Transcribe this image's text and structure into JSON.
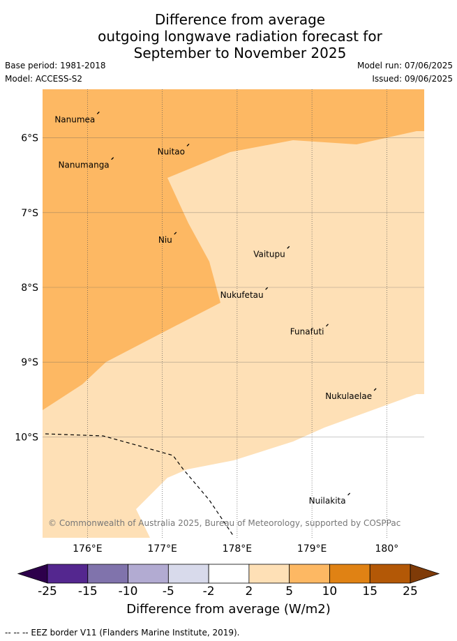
{
  "title": {
    "line1": "Difference from average",
    "line2": "outgoing longwave radiation forecast for",
    "line3": "September to November 2025"
  },
  "meta": {
    "base_period": "Base period: 1981-2018",
    "model": "Model: ACCESS-S2",
    "model_run": "Model run: 07/06/2025",
    "issued": "Issued: 09/06/2025"
  },
  "map": {
    "lon_range": [
      175.4,
      180.5
    ],
    "lat_range": [
      -5.35,
      -11.35
    ],
    "lon_ticks": [
      {
        "value": 176,
        "label": "176°E"
      },
      {
        "value": 177,
        "label": "177°E"
      },
      {
        "value": 178,
        "label": "178°E"
      },
      {
        "value": 179,
        "label": "179°E"
      },
      {
        "value": 180,
        "label": "180°"
      }
    ],
    "lat_ticks": [
      {
        "value": -6,
        "label": "6°S"
      },
      {
        "value": -7,
        "label": "7°S"
      },
      {
        "value": -8,
        "label": "8°S"
      },
      {
        "value": -9,
        "label": "9°S"
      },
      {
        "value": -10,
        "label": "10°S"
      }
    ],
    "places": [
      {
        "name": "Nanumea",
        "lon": 176.13,
        "lat": -5.68
      },
      {
        "name": "Nuitao",
        "lon": 177.33,
        "lat": -6.11
      },
      {
        "name": "Nanumanga",
        "lon": 176.32,
        "lat": -6.29
      },
      {
        "name": "Niu",
        "lon": 177.16,
        "lat": -7.29
      },
      {
        "name": "Vaitupu",
        "lon": 178.67,
        "lat": -7.48
      },
      {
        "name": "Nukufetau",
        "lon": 178.38,
        "lat": -8.03
      },
      {
        "name": "Funafuti",
        "lon": 179.19,
        "lat": -8.52
      },
      {
        "name": "Nukulaelae",
        "lon": 179.83,
        "lat": -9.38
      },
      {
        "name": "Nuilakita",
        "lon": 179.48,
        "lat": -10.78
      }
    ],
    "copyright": "© Commonwealth of Australia 2025, Bureau of Meteorology, supported by COSPPac"
  },
  "colorbar": {
    "title": "Difference from average (W/m2)",
    "bins": [
      {
        "from": -25,
        "to": -15,
        "color": "#54278f"
      },
      {
        "from": -15,
        "to": -10,
        "color": "#8073ac"
      },
      {
        "from": -10,
        "to": -5,
        "color": "#b2abd2"
      },
      {
        "from": -5,
        "to": -2,
        "color": "#d8daeb"
      },
      {
        "from": -2,
        "to": 2,
        "color": "#ffffff"
      },
      {
        "from": 2,
        "to": 5,
        "color": "#fee0b6"
      },
      {
        "from": 5,
        "to": 10,
        "color": "#fdb863"
      },
      {
        "from": 10,
        "to": 15,
        "color": "#e08214"
      },
      {
        "from": 15,
        "to": 25,
        "color": "#b35806"
      }
    ],
    "under_color": "#2d004b",
    "over_color": "#7f3b08",
    "tick_labels": [
      "-25",
      "-15",
      "-10",
      "-5",
      "-2",
      "2",
      "5",
      "10",
      "15",
      "25"
    ]
  },
  "footer": "-- -- -- EEZ border V11 (Flanders Marine Institute, 2019)."
}
